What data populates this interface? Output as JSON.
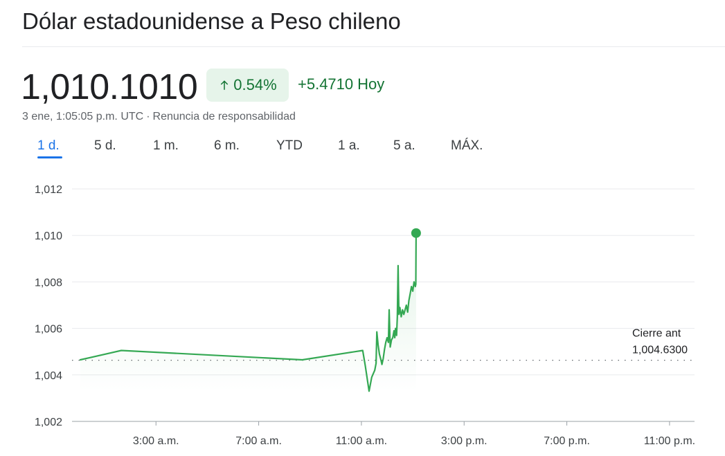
{
  "header": {
    "title": "Dólar estadounidense a Peso chileno"
  },
  "quote": {
    "price": "1,010.1010",
    "change_percent": "0.54%",
    "change_value": "+5.4710",
    "change_period": "Hoy",
    "timestamp": "3 ene, 1:05:05 p.m. UTC",
    "separator": "·",
    "disclaimer": "Renuncia de responsabilidad",
    "up_color": "#137333",
    "up_bg_color": "#e6f4ea",
    "arrow_icon": "arrow-up-icon"
  },
  "tabs": [
    {
      "label": "1 d.",
      "active": true
    },
    {
      "label": "5 d.",
      "active": false
    },
    {
      "label": "1 m.",
      "active": false
    },
    {
      "label": "6 m.",
      "active": false
    },
    {
      "label": "YTD",
      "active": false
    },
    {
      "label": "1 a.",
      "active": false
    },
    {
      "label": "5 a.",
      "active": false
    },
    {
      "label": "MÁX.",
      "active": false
    }
  ],
  "chart_data": {
    "type": "line",
    "line_color": "#34a853",
    "grid": true,
    "ylim": [
      1002,
      1012
    ],
    "y_ticks": [
      {
        "value": 1012,
        "label": "1,012"
      },
      {
        "value": 1010,
        "label": "1,010"
      },
      {
        "value": 1008,
        "label": "1,008"
      },
      {
        "value": 1006,
        "label": "1,006"
      },
      {
        "value": 1004,
        "label": "1,004"
      },
      {
        "value": 1002,
        "label": "1,002"
      }
    ],
    "x_range_hours": [
      0,
      24
    ],
    "x_ticks": [
      {
        "hour": 3,
        "label": "3:00 a.m."
      },
      {
        "hour": 7,
        "label": "7:00 a.m."
      },
      {
        "hour": 11,
        "label": "11:00 a.m."
      },
      {
        "hour": 15,
        "label": "3:00 p.m."
      },
      {
        "hour": 19,
        "label": "7:00 p.m."
      },
      {
        "hour": 23,
        "label": "11:00 p.m."
      }
    ],
    "previous_close": {
      "label": "Cierre ant",
      "value_label": "1,004.6300",
      "value": 1004.63
    },
    "series": [
      {
        "points": [
          [
            0.05,
            1004.65
          ],
          [
            1.65,
            1005.05
          ],
          [
            8.7,
            1004.65
          ],
          [
            11.05,
            1005.05
          ],
          [
            11.15,
            1004.4
          ],
          [
            11.3,
            1003.3
          ],
          [
            11.4,
            1003.9
          ],
          [
            11.52,
            1004.2
          ],
          [
            11.57,
            1004.5
          ],
          [
            11.6,
            1005.85
          ],
          [
            11.65,
            1005.3
          ],
          [
            11.7,
            1004.9
          ],
          [
            11.75,
            1004.7
          ],
          [
            11.8,
            1004.45
          ],
          [
            11.85,
            1004.7
          ],
          [
            11.9,
            1005.1
          ],
          [
            11.95,
            1005.4
          ],
          [
            12.0,
            1005.6
          ],
          [
            12.05,
            1005.4
          ],
          [
            12.08,
            1006.8
          ],
          [
            12.12,
            1005.2
          ],
          [
            12.17,
            1005.5
          ],
          [
            12.22,
            1005.6
          ],
          [
            12.27,
            1005.9
          ],
          [
            12.3,
            1005.6
          ],
          [
            12.33,
            1006.0
          ],
          [
            12.37,
            1005.7
          ],
          [
            12.4,
            1006.5
          ],
          [
            12.43,
            1008.7
          ],
          [
            12.46,
            1006.6
          ],
          [
            12.5,
            1006.9
          ],
          [
            12.55,
            1006.5
          ],
          [
            12.6,
            1006.8
          ],
          [
            12.65,
            1006.6
          ],
          [
            12.7,
            1006.8
          ],
          [
            12.75,
            1007.0
          ],
          [
            12.8,
            1006.7
          ],
          [
            12.85,
            1007.2
          ],
          [
            12.9,
            1007.5
          ],
          [
            12.95,
            1007.8
          ],
          [
            13.0,
            1007.6
          ],
          [
            13.05,
            1008.0
          ],
          [
            13.1,
            1007.8
          ],
          [
            13.12,
            1007.9
          ],
          [
            13.13,
            1010.1
          ]
        ]
      }
    ]
  }
}
